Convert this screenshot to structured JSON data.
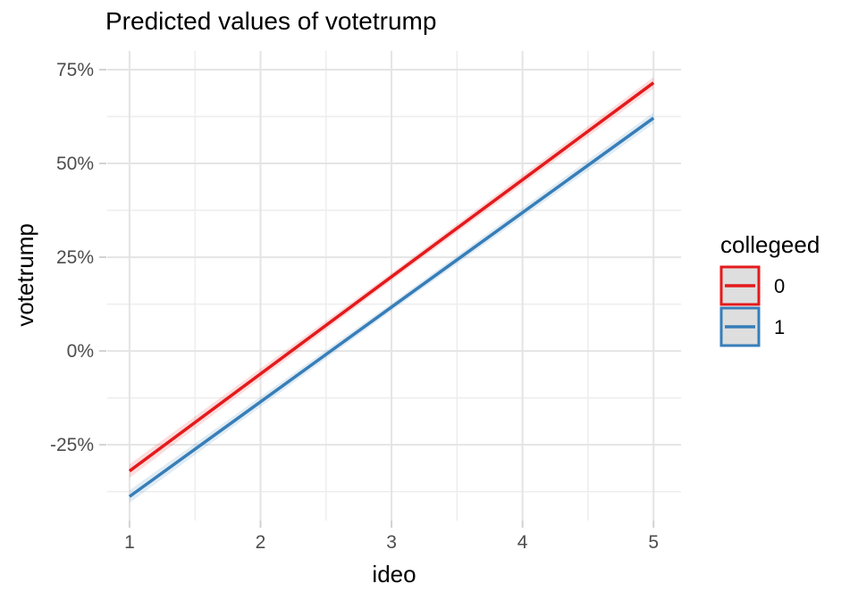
{
  "title": "Predicted values of votetrump",
  "colors": {
    "background": "#ffffff",
    "grid_major": "#e4e4e4",
    "grid_minor": "#ededed",
    "axis_tick": "#d2d2d2",
    "tick_label": "#4d4d4d",
    "text": "#000000",
    "legend_key_fill": "#dedede",
    "series_red": "#e41a1c",
    "series_blue": "#377eb8"
  },
  "legend": {
    "title": "collegeed",
    "items": [
      {
        "label": "0",
        "color": "#e41a1c"
      },
      {
        "label": "1",
        "color": "#377eb8"
      }
    ]
  },
  "chart_data": {
    "type": "line",
    "title": "Predicted values of votetrump",
    "xlabel": "ideo",
    "ylabel": "votetrump",
    "legend_title": "collegeed",
    "legend_position": "right",
    "grid": true,
    "xlim": [
      0.83,
      5.21
    ],
    "ylim": [
      -45.2,
      80.0
    ],
    "x_ticks": [
      1,
      2,
      3,
      4,
      5
    ],
    "x_tick_labels": [
      "1",
      "2",
      "3",
      "4",
      "5"
    ],
    "x_minor": [
      1.5,
      2.5,
      3.5,
      4.5
    ],
    "y_ticks": [
      -25,
      0,
      25,
      50,
      75
    ],
    "y_tick_labels": [
      "-25%",
      "0%",
      "25%",
      "50%",
      "75%"
    ],
    "y_minor": [
      -37.5,
      -12.5,
      12.5,
      37.5,
      62.5
    ],
    "series": [
      {
        "name": "0",
        "color": "#e41a1c",
        "x": [
          1,
          3,
          5
        ],
        "y": [
          -32.0,
          19.8,
          71.5
        ],
        "ribbon_lo": [
          -33.8,
          18.8,
          70.0
        ],
        "ribbon_hi": [
          -30.2,
          20.8,
          73.0
        ],
        "ribbon_opacity": 0.15
      },
      {
        "name": "1",
        "color": "#377eb8",
        "x": [
          1,
          3,
          5
        ],
        "y": [
          -38.8,
          11.7,
          62.1
        ],
        "ribbon_lo": [
          -40.5,
          10.7,
          60.6
        ],
        "ribbon_hi": [
          -37.1,
          12.7,
          63.6
        ],
        "ribbon_opacity": 0.15
      }
    ]
  }
}
